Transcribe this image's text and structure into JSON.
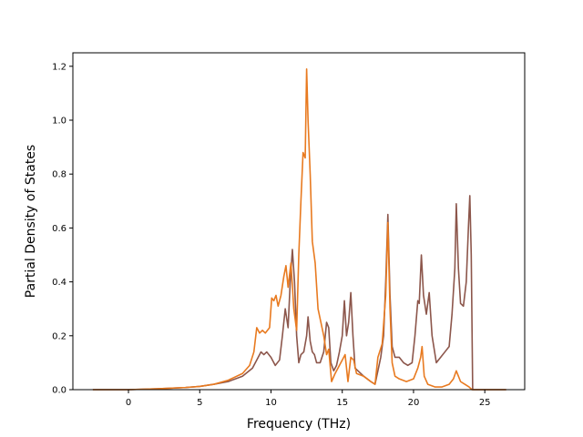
{
  "chart_data": {
    "type": "line",
    "title": "",
    "xlabel": "Frequency (THz)",
    "ylabel": "Partial Density of States",
    "xlim": [
      -3.9,
      27.8
    ],
    "ylim": [
      0.0,
      1.25
    ],
    "xticks": [
      0,
      5,
      10,
      15,
      20,
      25
    ],
    "yticks": [
      0.0,
      0.2,
      0.4,
      0.6,
      0.8,
      1.0,
      1.2
    ],
    "xtick_labels": [
      "0",
      "5",
      "10",
      "15",
      "20",
      "25"
    ],
    "ytick_labels": [
      "0.0",
      "0.2",
      "0.4",
      "0.6",
      "0.8",
      "1.0",
      "1.2"
    ],
    "grid": false,
    "legend": "none",
    "series": [
      {
        "color": "#8c564b",
        "points": [
          [
            -2.5,
            0
          ],
          [
            0,
            0
          ],
          [
            2,
            0.003
          ],
          [
            4,
            0.008
          ],
          [
            5,
            0.012
          ],
          [
            6,
            0.02
          ],
          [
            7,
            0.03
          ],
          [
            8,
            0.05
          ],
          [
            8.7,
            0.08
          ],
          [
            9.1,
            0.12
          ],
          [
            9.3,
            0.14
          ],
          [
            9.5,
            0.13
          ],
          [
            9.7,
            0.14
          ],
          [
            10,
            0.12
          ],
          [
            10.3,
            0.09
          ],
          [
            10.6,
            0.11
          ],
          [
            10.8,
            0.2
          ],
          [
            11,
            0.3
          ],
          [
            11.2,
            0.23
          ],
          [
            11.35,
            0.4
          ],
          [
            11.5,
            0.52
          ],
          [
            11.65,
            0.4
          ],
          [
            11.8,
            0.2
          ],
          [
            11.95,
            0.1
          ],
          [
            12.1,
            0.13
          ],
          [
            12.3,
            0.14
          ],
          [
            12.5,
            0.2
          ],
          [
            12.6,
            0.27
          ],
          [
            12.75,
            0.18
          ],
          [
            12.9,
            0.14
          ],
          [
            13.05,
            0.13
          ],
          [
            13.2,
            0.1
          ],
          [
            13.45,
            0.1
          ],
          [
            13.7,
            0.14
          ],
          [
            13.9,
            0.25
          ],
          [
            14.05,
            0.23
          ],
          [
            14.2,
            0.1
          ],
          [
            14.4,
            0.07
          ],
          [
            14.6,
            0.09
          ],
          [
            14.8,
            0.14
          ],
          [
            15,
            0.2
          ],
          [
            15.15,
            0.33
          ],
          [
            15.3,
            0.2
          ],
          [
            15.45,
            0.25
          ],
          [
            15.6,
            0.36
          ],
          [
            15.75,
            0.2
          ],
          [
            15.9,
            0.08
          ],
          [
            16.5,
            0.05
          ],
          [
            17,
            0.03
          ],
          [
            17.3,
            0.02
          ],
          [
            17.5,
            0.07
          ],
          [
            17.7,
            0.12
          ],
          [
            17.9,
            0.2
          ],
          [
            18.05,
            0.4
          ],
          [
            18.2,
            0.65
          ],
          [
            18.35,
            0.35
          ],
          [
            18.5,
            0.16
          ],
          [
            18.7,
            0.12
          ],
          [
            19,
            0.12
          ],
          [
            19.3,
            0.1
          ],
          [
            19.6,
            0.09
          ],
          [
            19.9,
            0.1
          ],
          [
            20.1,
            0.2
          ],
          [
            20.3,
            0.33
          ],
          [
            20.4,
            0.32
          ],
          [
            20.55,
            0.5
          ],
          [
            20.7,
            0.35
          ],
          [
            20.9,
            0.28
          ],
          [
            21.1,
            0.36
          ],
          [
            21.3,
            0.2
          ],
          [
            21.6,
            0.1
          ],
          [
            21.9,
            0.12
          ],
          [
            22.2,
            0.14
          ],
          [
            22.5,
            0.16
          ],
          [
            22.7,
            0.28
          ],
          [
            22.9,
            0.45
          ],
          [
            23.0,
            0.69
          ],
          [
            23.15,
            0.45
          ],
          [
            23.3,
            0.32
          ],
          [
            23.5,
            0.31
          ],
          [
            23.7,
            0.4
          ],
          [
            23.85,
            0.6
          ],
          [
            23.95,
            0.72
          ],
          [
            24.05,
            0.5
          ],
          [
            24.15,
            0
          ],
          [
            26.5,
            0
          ]
        ]
      },
      {
        "color": "#e87a20",
        "points": [
          [
            -2.5,
            0
          ],
          [
            0,
            0
          ],
          [
            2,
            0.003
          ],
          [
            4,
            0.008
          ],
          [
            5,
            0.012
          ],
          [
            6,
            0.02
          ],
          [
            7,
            0.035
          ],
          [
            8,
            0.06
          ],
          [
            8.5,
            0.09
          ],
          [
            8.8,
            0.14
          ],
          [
            9.0,
            0.23
          ],
          [
            9.2,
            0.21
          ],
          [
            9.4,
            0.22
          ],
          [
            9.6,
            0.21
          ],
          [
            9.9,
            0.23
          ],
          [
            10.05,
            0.34
          ],
          [
            10.2,
            0.33
          ],
          [
            10.35,
            0.35
          ],
          [
            10.5,
            0.31
          ],
          [
            10.7,
            0.35
          ],
          [
            10.9,
            0.42
          ],
          [
            11.05,
            0.46
          ],
          [
            11.2,
            0.38
          ],
          [
            11.4,
            0.47
          ],
          [
            11.6,
            0.3
          ],
          [
            11.8,
            0.22
          ],
          [
            11.95,
            0.5
          ],
          [
            12.1,
            0.7
          ],
          [
            12.25,
            0.88
          ],
          [
            12.4,
            0.86
          ],
          [
            12.5,
            1.19
          ],
          [
            12.6,
            1.0
          ],
          [
            12.75,
            0.8
          ],
          [
            12.9,
            0.55
          ],
          [
            13.1,
            0.47
          ],
          [
            13.3,
            0.3
          ],
          [
            13.5,
            0.25
          ],
          [
            13.7,
            0.2
          ],
          [
            13.9,
            0.13
          ],
          [
            14.05,
            0.15
          ],
          [
            14.25,
            0.03
          ],
          [
            14.5,
            0.06
          ],
          [
            14.8,
            0.09
          ],
          [
            15.0,
            0.11
          ],
          [
            15.2,
            0.13
          ],
          [
            15.4,
            0.03
          ],
          [
            15.6,
            0.12
          ],
          [
            15.8,
            0.11
          ],
          [
            16.0,
            0.06
          ],
          [
            16.5,
            0.05
          ],
          [
            17.0,
            0.03
          ],
          [
            17.3,
            0.02
          ],
          [
            17.5,
            0.12
          ],
          [
            17.8,
            0.17
          ],
          [
            18.05,
            0.35
          ],
          [
            18.2,
            0.62
          ],
          [
            18.35,
            0.3
          ],
          [
            18.5,
            0.1
          ],
          [
            18.7,
            0.05
          ],
          [
            19,
            0.04
          ],
          [
            19.5,
            0.03
          ],
          [
            20,
            0.04
          ],
          [
            20.3,
            0.08
          ],
          [
            20.5,
            0.12
          ],
          [
            20.6,
            0.16
          ],
          [
            20.75,
            0.05
          ],
          [
            21,
            0.02
          ],
          [
            21.5,
            0.01
          ],
          [
            22,
            0.01
          ],
          [
            22.5,
            0.02
          ],
          [
            22.8,
            0.04
          ],
          [
            23.0,
            0.07
          ],
          [
            23.15,
            0.05
          ],
          [
            23.3,
            0.03
          ],
          [
            23.6,
            0.02
          ],
          [
            23.9,
            0.01
          ],
          [
            24.1,
            0
          ],
          [
            26.5,
            0
          ]
        ]
      }
    ]
  }
}
